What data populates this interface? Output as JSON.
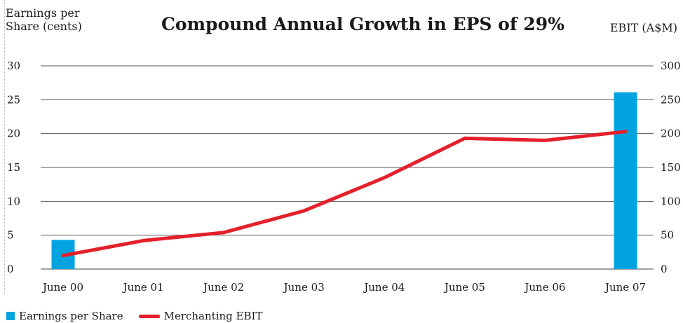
{
  "chart_data": {
    "type": "bar+line",
    "title": "Compound Annual Growth in EPS of 29%",
    "ylabel_left_lines": [
      "Earnings per",
      "Share (cents)"
    ],
    "ylabel_right": "EBIT (A$M)",
    "categories": [
      "June 00",
      "June 01",
      "June 02",
      "June 03",
      "June 04",
      "June 05",
      "June 06",
      "June 07"
    ],
    "y_left_range": [
      0,
      30
    ],
    "y_left_ticks": [
      "0",
      "5",
      "10",
      "15",
      "20",
      "25",
      "30"
    ],
    "y_right_range": [
      0,
      300
    ],
    "y_right_ticks": [
      "0",
      "50",
      "100",
      "150",
      "200",
      "250",
      "300"
    ],
    "grid": "horizontal",
    "legend_position": "bottom-left",
    "series": [
      {
        "name": "Earnings per Share",
        "type": "bar",
        "axis": "left",
        "color": "#00a3e0",
        "values": [
          4.3,
          null,
          null,
          null,
          null,
          null,
          null,
          26.1
        ]
      },
      {
        "name": "Merchanting EBIT",
        "type": "line",
        "axis": "right",
        "color": "#e4202a",
        "values": [
          20,
          42,
          54,
          86,
          135,
          193,
          190,
          203
        ]
      }
    ]
  }
}
